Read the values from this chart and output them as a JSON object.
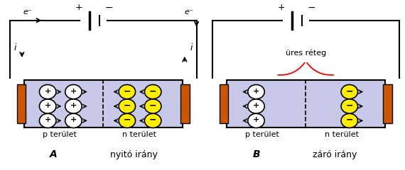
{
  "fig_width": 5.7,
  "fig_height": 2.4,
  "dpi": 100,
  "bg_color": "#ffffff",
  "diode_fill": "#c8c8e8",
  "contact_fill": "#cc5500",
  "n_circles_yellow": "#ffee00",
  "label_A": "A",
  "label_B": "B",
  "label_nyito": " nyitó irány",
  "label_zaro": " záró irány",
  "label_p": "p terület",
  "label_n": "n terület",
  "label_ures": "üres réteg",
  "battery_plus": "+",
  "battery_minus": "−",
  "electron_label": "e⁻"
}
